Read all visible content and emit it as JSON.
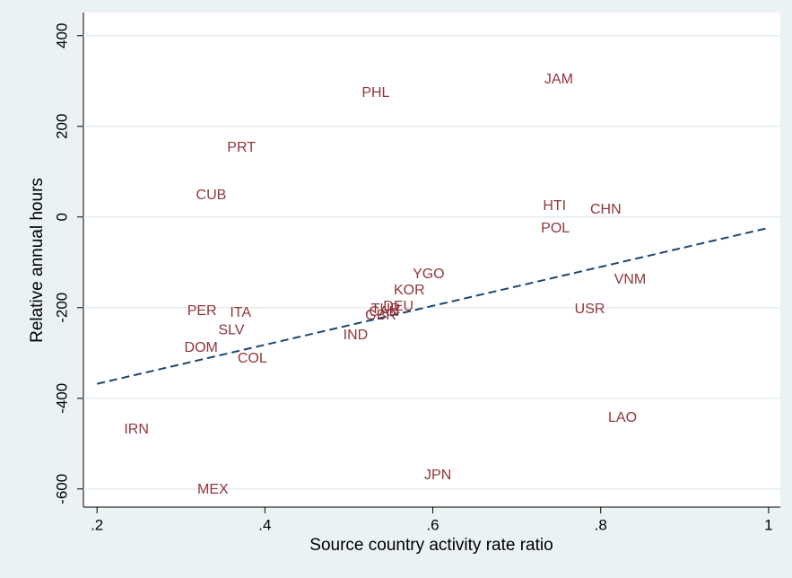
{
  "chart_data": {
    "type": "scatter",
    "xlabel": "Source country activity rate ratio",
    "ylabel": "Relative annual hours",
    "labels": [
      "JAM",
      "PHL",
      "PRT",
      "CUB",
      "HTI",
      "CHN",
      "POL",
      "YGO",
      "VNM",
      "KOR",
      "DEU",
      "TUR",
      "CAN",
      "GBR",
      "PER",
      "ITA",
      "USR",
      "SLV",
      "IND",
      "DOM",
      "COL",
      "LAO",
      "IRN",
      "JPN",
      "MEX"
    ],
    "x": [
      0.75,
      0.532,
      0.372,
      0.336,
      0.745,
      0.806,
      0.746,
      0.595,
      0.835,
      0.572,
      0.559,
      0.544,
      0.542,
      0.538,
      0.325,
      0.371,
      0.787,
      0.36,
      0.508,
      0.324,
      0.385,
      0.826,
      0.247,
      0.606,
      0.338
    ],
    "values": [
      303,
      273,
      152,
      48,
      24,
      16,
      -26,
      -127,
      -139,
      -162,
      -198,
      -204,
      -210,
      -218,
      -208,
      -212,
      -204,
      -250,
      -261,
      -289,
      -313,
      -444,
      -469,
      -570,
      -602
    ],
    "color": "#90353b",
    "fit_line": {
      "x": [
        0.2,
        1
      ],
      "values": [
        -368,
        -24
      ],
      "color": "#1a476f"
    },
    "xlim": [
      0.187,
      1.014
    ],
    "ylim": [
      -640,
      451
    ],
    "xticks": [
      {
        "value": 0.2,
        "label": ".2"
      },
      {
        "value": 0.4,
        "label": ".4"
      },
      {
        "value": 0.6,
        "label": ".6"
      },
      {
        "value": 0.8,
        "label": ".8"
      },
      1
    ],
    "yticks": [
      400,
      200,
      0,
      -200,
      -400,
      -600
    ],
    "grid": true
  }
}
